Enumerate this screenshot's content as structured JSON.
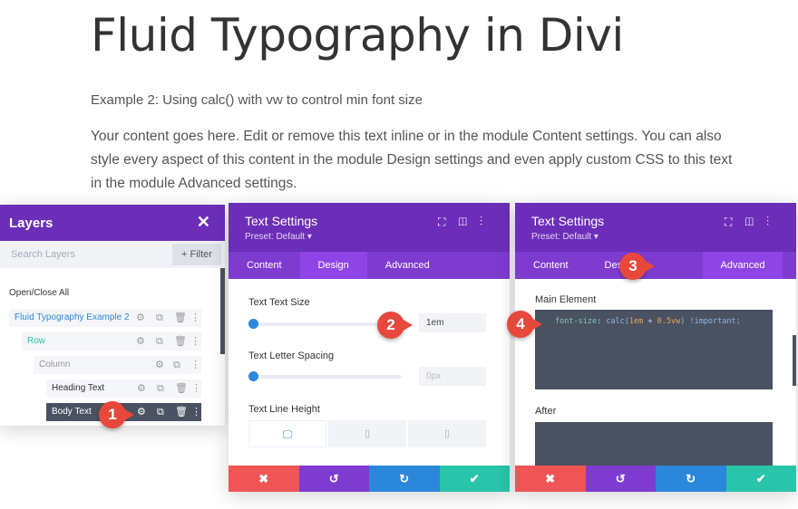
{
  "page": {
    "title": "Fluid Typography in Divi",
    "subtitle": "Example 2: Using calc() with vw to control min font size",
    "paragraph": "Your content goes here. Edit or remove this text inline or in the module Content settings. You can also style every aspect of this content in the module Design settings and even apply custom CSS to this text in the module Advanced settings."
  },
  "layers": {
    "title": "Layers",
    "search_placeholder": "Search Layers",
    "filter": "+ Filter",
    "open_close": "Open/Close All",
    "items": [
      {
        "label": "Fluid Typography Example 2",
        "color": "#2b87da"
      },
      {
        "label": "Row",
        "color": "#29c4a9"
      },
      {
        "label": "Column",
        "color": "#999"
      },
      {
        "label": "Heading Text",
        "color": "#333"
      },
      {
        "label": "Body Text",
        "color": "#ffffff"
      }
    ]
  },
  "settings1": {
    "title": "Text Settings",
    "preset": "Preset: Default ▾",
    "tabs": [
      "Content",
      "Design",
      "Advanced"
    ],
    "active_tab": "Design",
    "text_size_label": "Text Text Size",
    "text_size": "1em",
    "letter_spacing_label": "Text Letter Spacing",
    "letter_spacing": "0px",
    "line_height_label": "Text Line Height"
  },
  "settings2": {
    "title": "Text Settings",
    "preset": "Preset: Default ▾",
    "tabs": [
      "Content",
      "Design",
      "Advanced"
    ],
    "tab_design_visible": "Des",
    "active_tab": "Advanced",
    "main_element_label": "Main Element",
    "css": {
      "prop": "font-size",
      "fn": "calc(",
      "v1": "1em",
      "op": " + ",
      "v2": "0.5vw",
      "close": ")",
      "imp": " !important;"
    },
    "after_label": "After"
  },
  "markers": [
    "1",
    "2",
    "3",
    "4"
  ],
  "colors": {
    "purple": "#6c2eb9",
    "cancel": "#ef5555",
    "undo": "#7e3bd0",
    "redo": "#2b87da",
    "save": "#29c4a9"
  }
}
